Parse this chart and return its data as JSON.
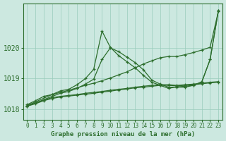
{
  "title": "Graphe pression niveau de la mer (hPa)",
  "bg_color": "#cce8e0",
  "grid_color": "#99ccbb",
  "line_color": "#2d6e2d",
  "xlim": [
    -0.5,
    23.5
  ],
  "ylim": [
    1017.65,
    1021.45
  ],
  "yticks": [
    1018,
    1019,
    1020
  ],
  "xticks": [
    0,
    1,
    2,
    3,
    4,
    5,
    6,
    7,
    8,
    9,
    10,
    11,
    12,
    13,
    14,
    15,
    16,
    17,
    18,
    19,
    20,
    21,
    22,
    23
  ],
  "series": [
    {
      "x": [
        0,
        1,
        2,
        3,
        4,
        5,
        6,
        7,
        8,
        9,
        10,
        11,
        12,
        13,
        14,
        15,
        16,
        17,
        18,
        19,
        20,
        21,
        22,
        23
      ],
      "y": [
        1018.15,
        1018.28,
        1018.42,
        1018.48,
        1018.55,
        1018.62,
        1018.7,
        1018.78,
        1018.85,
        1018.93,
        1019.02,
        1019.12,
        1019.22,
        1019.35,
        1019.48,
        1019.58,
        1019.68,
        1019.72,
        1019.72,
        1019.78,
        1019.85,
        1019.93,
        1020.02,
        1021.2
      ]
    },
    {
      "x": [
        0,
        3,
        4,
        5,
        6,
        7,
        8,
        9,
        10,
        11,
        12,
        13,
        14,
        15,
        16,
        17,
        18,
        19,
        20,
        21,
        22,
        23
      ],
      "y": [
        1018.12,
        1018.48,
        1018.6,
        1018.65,
        1018.8,
        1019.0,
        1019.3,
        1020.55,
        1020.02,
        1019.75,
        1019.55,
        1019.35,
        1019.1,
        1018.88,
        1018.78,
        1018.68,
        1018.73,
        1018.75,
        1018.78,
        1018.88,
        1019.62,
        1021.22
      ]
    },
    {
      "x": [
        0,
        3,
        4,
        5,
        6,
        7,
        8,
        9,
        10,
        11,
        12,
        13,
        14,
        15,
        16,
        17,
        18,
        19,
        20,
        21,
        22,
        23
      ],
      "y": [
        1018.1,
        1018.42,
        1018.52,
        1018.58,
        1018.68,
        1018.82,
        1018.98,
        1019.62,
        1020.0,
        1019.88,
        1019.7,
        1019.52,
        1019.28,
        1018.95,
        1018.82,
        1018.72,
        1018.72,
        1018.72,
        1018.78,
        1018.9,
        1019.62,
        1021.22
      ]
    },
    {
      "x": [
        0,
        1,
        2,
        3,
        4,
        5,
        6,
        7,
        8,
        9,
        10,
        11,
        12,
        13,
        14,
        15,
        16,
        17,
        18,
        19,
        20,
        21,
        22,
        23
      ],
      "y": [
        1018.12,
        1018.2,
        1018.3,
        1018.38,
        1018.42,
        1018.45,
        1018.48,
        1018.52,
        1018.55,
        1018.58,
        1018.62,
        1018.65,
        1018.68,
        1018.72,
        1018.75,
        1018.78,
        1018.8,
        1018.8,
        1018.78,
        1018.8,
        1018.82,
        1018.85,
        1018.88,
        1018.9
      ]
    },
    {
      "x": [
        0,
        1,
        2,
        3,
        4,
        5,
        6,
        7,
        8,
        9,
        10,
        11,
        12,
        13,
        14,
        15,
        16,
        17,
        18,
        19,
        20,
        21,
        22,
        23
      ],
      "y": [
        1018.1,
        1018.18,
        1018.28,
        1018.35,
        1018.4,
        1018.43,
        1018.46,
        1018.49,
        1018.52,
        1018.56,
        1018.59,
        1018.63,
        1018.66,
        1018.7,
        1018.72,
        1018.75,
        1018.78,
        1018.78,
        1018.76,
        1018.78,
        1018.8,
        1018.83,
        1018.86,
        1018.88
      ]
    }
  ]
}
